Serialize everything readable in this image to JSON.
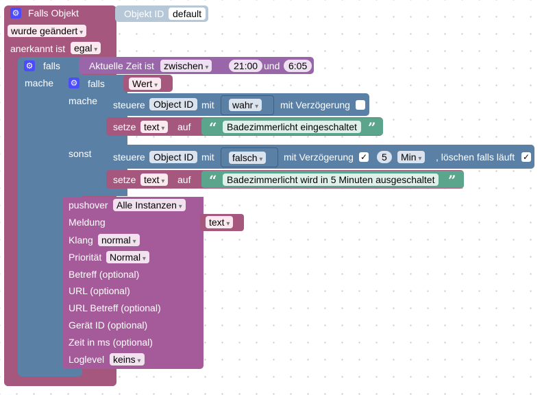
{
  "trigger": {
    "title": "Falls Objekt",
    "objekt_id_label": "Objekt ID",
    "objekt_id_value": "default",
    "changed_value": "wurde geändert",
    "ack_label": "anerkannt ist",
    "ack_value": "egal"
  },
  "if_time": {
    "falls": "falls",
    "mache": "mache",
    "cond_label": "Aktuelle Zeit ist",
    "cond_value": "zwischen",
    "time_from": "21:00",
    "und": "und",
    "time_to": "6:05"
  },
  "if_value": {
    "falls": "falls",
    "mache": "mache",
    "sonst": "sonst",
    "cond": "Wert"
  },
  "control1": {
    "steuere": "steuere",
    "object_id": "Object ID",
    "mit": "mit",
    "value": "wahr",
    "delay_label": "mit Verzögerung"
  },
  "set1": {
    "setze": "setze",
    "var": "text",
    "auf": "auf",
    "text": "Badezimmerlicht eingeschaltet"
  },
  "control2": {
    "steuere": "steuere",
    "object_id": "Object ID",
    "mit": "mit",
    "value": "falsch",
    "delay_label": "mit Verzögerung",
    "delay_checked": "✓",
    "delay_value": "5",
    "unit": "Min",
    "clear_label": ", löschen falls läuft",
    "clear_checked": "✓"
  },
  "set2": {
    "setze": "setze",
    "var": "text",
    "auf": "auf",
    "text": "Badezimmerlicht wird in 5 Minuten ausgeschaltet"
  },
  "pushover": {
    "title": "pushover",
    "instance": "Alle Instanzen",
    "meldung": "Meldung",
    "meldung_value": "text",
    "klang": "Klang",
    "klang_value": "normal",
    "prioritaet": "Priorität",
    "prioritaet_value": "Normal",
    "betreff": "Betreff (optional)",
    "url": "URL (optional)",
    "url_betreff": "URL Betreff (optional)",
    "geraet": "Gerät ID (optional)",
    "zeit": "Zeit in ms (optional)",
    "loglevel": "Loglevel",
    "loglevel_value": "keins"
  },
  "icons": {
    "settings": "gear-icon",
    "quote_open": "quote-open-icon",
    "quote_close": "quote-close-icon",
    "dropdown": "chevron-down-icon"
  },
  "colors": {
    "trigger": "#a5577e",
    "logic": "#5b80a5",
    "object_block": "#b6c7d8",
    "text": "#5ba58c",
    "pushover": "#a55b99"
  }
}
